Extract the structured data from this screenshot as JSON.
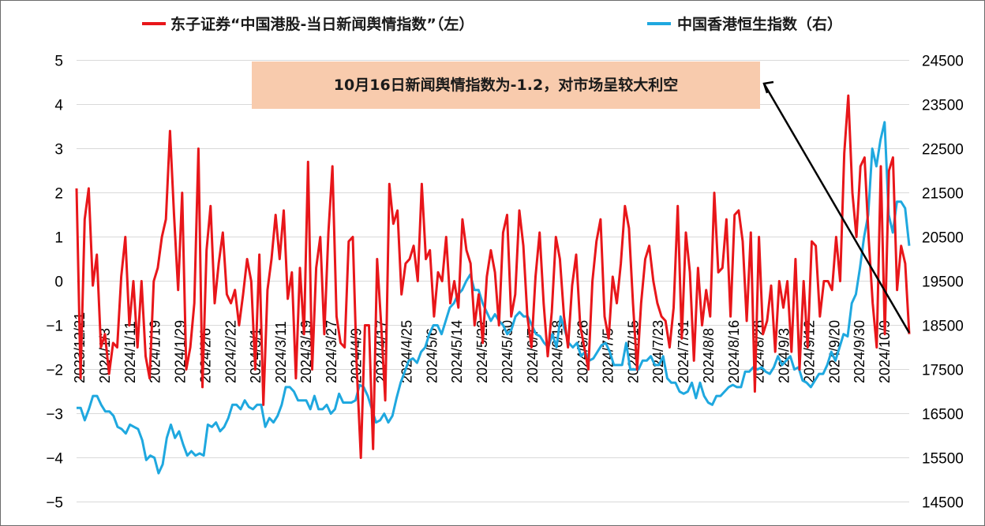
{
  "chart_data": {
    "type": "line",
    "legend": {
      "placement": "top",
      "items": [
        {
          "label": "东子证券“中国港股-当日新闻舆情指数”（左）",
          "color": "#e8161a"
        },
        {
          "label": "中国香港恒生指数（右）",
          "color": "#1fa8df"
        }
      ]
    },
    "left_axis": {
      "ylim": [
        -5,
        5
      ],
      "ticks": [
        "5",
        "4",
        "3",
        "2",
        "1",
        "0",
        "−1",
        "−2",
        "−3",
        "−4",
        "−5"
      ]
    },
    "right_axis": {
      "ylim": [
        14500,
        24500
      ],
      "ticks": [
        "24500",
        "23500",
        "22500",
        "21500",
        "20500",
        "19500",
        "18500",
        "17500",
        "16500",
        "15500",
        "14500"
      ]
    },
    "x_ticks": [
      "2023/12/21",
      "2024/1/3",
      "2024/1/11",
      "2024/1/19",
      "2024/1/29",
      "2024/2/6",
      "2024/2/22",
      "2024/3/1",
      "2024/3/11",
      "2024/3/19",
      "2024/3/27",
      "2024/4/9",
      "2024/4/17",
      "2024/4/25",
      "2024/5/6",
      "2024/5/14",
      "2024/5/22",
      "2024/5/30",
      "2024/6/7",
      "2024/6/18",
      "2024/6/26",
      "2024/7/5",
      "2024/7/15",
      "2024/7/23",
      "2024/7/31",
      "2024/8/8",
      "2024/8/16",
      "2024/8/26",
      "2024/9/3",
      "2024/9/12",
      "2024/9/20",
      "2024/9/30",
      "2024/10/9"
    ],
    "grid": true,
    "annotation": {
      "text": "10月16日新闻舆情指数为-1.2，对市场呈较大利空",
      "background": "#f8cbad"
    },
    "series": [
      {
        "name": "东子证券“中国港股-当日新闻舆情指数”（左）",
        "axis": "left",
        "color": "#e8161a",
        "values": [
          2.1,
          -2.2,
          1.4,
          2.1,
          -0.1,
          0.6,
          -1.5,
          -1.2,
          -2.1,
          -1.4,
          -1.5,
          0.1,
          1.0,
          -1.0,
          0.0,
          -1.5,
          0.0,
          -1.7,
          -2.2,
          0.0,
          0.3,
          1.0,
          1.4,
          3.4,
          1.5,
          -0.2,
          2.0,
          -2.0,
          -1.5,
          -0.5,
          3.0,
          -2.4,
          0.7,
          1.7,
          -0.5,
          0.4,
          1.1,
          -0.3,
          -0.5,
          -0.2,
          -1.0,
          -0.3,
          0.5,
          0.0,
          -2.0,
          0.6,
          -2.8,
          -0.2,
          0.5,
          1.5,
          0.5,
          1.6,
          -0.4,
          0.2,
          -2.2,
          0.3,
          -1.2,
          2.7,
          -2.0,
          0.3,
          1.0,
          -1.2,
          1.1,
          2.6,
          -0.8,
          -1.4,
          -1.5,
          0.9,
          1.0,
          -2.0,
          -4.0,
          -1.0,
          -1.0,
          -3.8,
          0.5,
          -1.0,
          -2.7,
          2.2,
          1.3,
          1.6,
          -0.3,
          0.4,
          0.5,
          0.8,
          0.0,
          2.2,
          0.5,
          0.7,
          -0.8,
          0.2,
          0.0,
          1.0,
          -0.5,
          0.0,
          -0.6,
          1.4,
          0.7,
          0.4,
          -1.0,
          -0.3,
          -1.4,
          0.1,
          0.7,
          0.2,
          -1.0,
          1.1,
          1.5,
          -0.8,
          -0.3,
          1.6,
          0.8,
          -0.8,
          -1.5,
          0.1,
          1.1,
          -0.5,
          -1.7,
          -0.7,
          1.0,
          0.5,
          -0.8,
          -1.5,
          -0.1,
          0.6,
          -1.0,
          -1.5,
          -2.0,
          0.0,
          0.9,
          1.4,
          -0.8,
          -1.3,
          0.1,
          -0.5,
          0.4,
          1.7,
          1.2,
          -0.5,
          -2.0,
          -0.5,
          0.5,
          0.8,
          0.0,
          -0.5,
          -0.8,
          -0.9,
          -1.5,
          -0.6,
          1.7,
          -1.3,
          1.1,
          0.2,
          -1.8,
          0.3,
          -1.0,
          -0.2,
          -0.8,
          2.0,
          0.2,
          0.3,
          1.4,
          -0.8,
          1.5,
          1.6,
          0.9,
          -0.9,
          1.1,
          -2.5,
          1.0,
          -1.2,
          -0.9,
          -0.1,
          -1.6,
          0.0,
          -0.6,
          0.0,
          -1.6,
          0.5,
          -2.0,
          0.0,
          -1.5,
          0.9,
          0.8,
          -0.8,
          0.0,
          0.0,
          -0.2,
          1.0,
          0.0,
          2.9,
          4.2,
          2.0,
          1.0,
          2.6,
          2.8,
          1.0,
          -0.5,
          -1.5,
          2.6,
          -1.2,
          2.5,
          2.8,
          -0.2,
          0.8,
          0.4,
          -1.2
        ]
      },
      {
        "name": "中国香港恒生指数（右）",
        "axis": "right",
        "color": "#1fa8df",
        "values": [
          16630,
          16630,
          16350,
          16600,
          16900,
          16900,
          16700,
          16550,
          16550,
          16450,
          16200,
          16150,
          16050,
          16250,
          16200,
          16150,
          15900,
          15450,
          15550,
          15500,
          15150,
          15350,
          15950,
          16250,
          15950,
          16100,
          15800,
          15550,
          15650,
          15550,
          15600,
          15550,
          16250,
          16200,
          16300,
          16100,
          16200,
          16400,
          16700,
          16700,
          16600,
          16800,
          16650,
          16600,
          16700,
          16700,
          16200,
          16400,
          16300,
          16450,
          16700,
          17100,
          17100,
          17000,
          16800,
          16800,
          16800,
          16600,
          16900,
          16600,
          16600,
          16700,
          16500,
          16600,
          16950,
          16750,
          16750,
          16750,
          16800,
          17150,
          17100,
          16900,
          16600,
          16300,
          16350,
          16500,
          16300,
          16450,
          16850,
          17200,
          17450,
          17700,
          17750,
          17650,
          17900,
          18000,
          18300,
          18500,
          18500,
          18300,
          18600,
          18900,
          19000,
          19200,
          19300,
          19500,
          19650,
          19300,
          19300,
          19000,
          18800,
          18600,
          18750,
          18600,
          18500,
          18300,
          18400,
          18700,
          18800,
          18700,
          18700,
          18500,
          18300,
          18250,
          18100,
          18000,
          18300,
          18000,
          18700,
          18400,
          18100,
          18000,
          18100,
          17800,
          17900,
          17700,
          17750,
          17900,
          18050,
          18100,
          17900,
          17600,
          17600,
          17600,
          18100,
          17500,
          17500,
          17500,
          17700,
          17700,
          17800,
          17600,
          17600,
          17800,
          17300,
          17200,
          17200,
          17000,
          16950,
          17000,
          17200,
          16850,
          17200,
          16900,
          16750,
          16700,
          16900,
          16900,
          17000,
          17100,
          17150,
          17100,
          17100,
          17450,
          17450,
          17550,
          17500,
          17550,
          17450,
          17400,
          17550,
          17800,
          17600,
          17700,
          17800,
          17500,
          17550,
          17250,
          17200,
          17100,
          17250,
          17400,
          17400,
          17600,
          17900,
          17700,
          18000,
          18300,
          18250,
          19000,
          19200,
          19800,
          20500,
          21000,
          22500,
          22100,
          22700,
          23100,
          21000,
          20600,
          21300,
          21300,
          21150,
          20300
        ]
      }
    ]
  }
}
